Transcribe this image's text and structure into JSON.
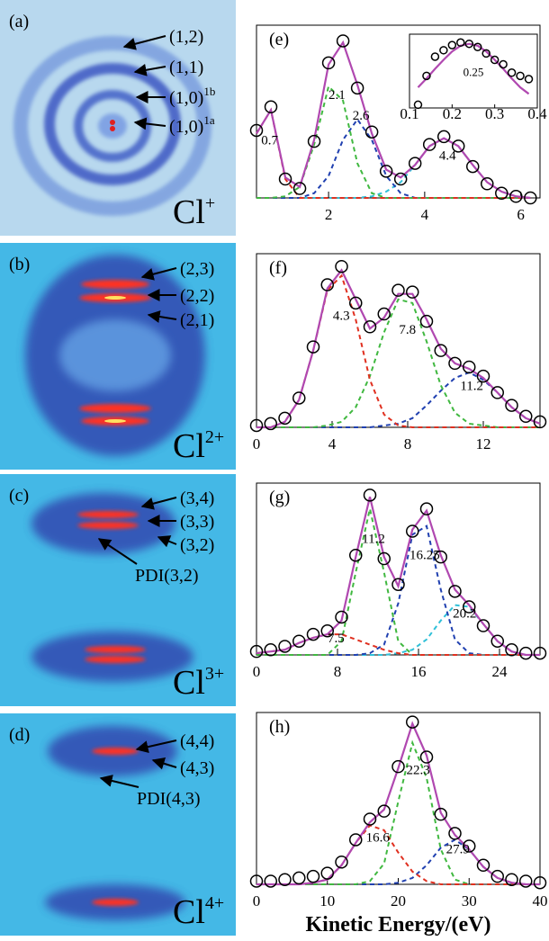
{
  "images": [
    {
      "panel_label": "(a)",
      "ion": "Cl",
      "charge": "+",
      "labels": [
        {
          "text": "(1,2)"
        },
        {
          "text": "(1,1)"
        },
        {
          "text": "(1,0)",
          "superscript": "1b"
        },
        {
          "text": "(1,0)",
          "superscript": "1a"
        }
      ]
    },
    {
      "panel_label": "(b)",
      "ion": "Cl",
      "charge": "2+",
      "labels": [
        {
          "text": "(2,3)"
        },
        {
          "text": "(2,2)"
        },
        {
          "text": "(2,1)"
        }
      ]
    },
    {
      "panel_label": "(c)",
      "ion": "Cl",
      "charge": "3+",
      "labels": [
        {
          "text": "(3,4)"
        },
        {
          "text": "(3,3)"
        },
        {
          "text": "(3,2)"
        },
        {
          "text": "PDI(3,2)"
        }
      ]
    },
    {
      "panel_label": "(d)",
      "ion": "Cl",
      "charge": "4+",
      "labels": [
        {
          "text": "(4,4)"
        },
        {
          "text": "(4,3)"
        },
        {
          "text": "PDI(4,3)"
        }
      ]
    }
  ],
  "chart_data": [
    {
      "type": "line",
      "panel_label": "(e)",
      "xlim": [
        0.5,
        6.4
      ],
      "xticks": [
        2,
        4,
        6
      ],
      "ylim": [
        0,
        1.1
      ],
      "x": [
        0.5,
        0.8,
        1.1,
        1.4,
        1.7,
        2.0,
        2.3,
        2.6,
        2.9,
        3.2,
        3.5,
        3.8,
        4.1,
        4.4,
        4.7,
        5.0,
        5.3,
        5.6,
        5.9,
        6.2
      ],
      "series": [
        {
          "marker": "circle",
          "color": "#000000",
          "values": [
            0.43,
            0.58,
            0.12,
            0.06,
            0.36,
            0.86,
            1.0,
            0.7,
            0.42,
            0.17,
            0.12,
            0.22,
            0.34,
            0.39,
            0.33,
            0.2,
            0.09,
            0.03,
            0.01,
            0.0
          ]
        },
        {
          "line_style": "solid",
          "color": "#b048b0",
          "values": [
            0.41,
            0.56,
            0.13,
            0.07,
            0.37,
            0.85,
            0.99,
            0.72,
            0.41,
            0.18,
            0.13,
            0.21,
            0.33,
            0.38,
            0.33,
            0.21,
            0.1,
            0.04,
            0.01,
            0.0
          ]
        },
        {
          "line_style": "dashed",
          "color": "#e03020",
          "values": [
            0.41,
            0.56,
            0.12,
            0,
            0,
            0,
            0,
            0,
            0,
            0,
            0,
            0,
            0,
            0,
            0,
            0,
            0,
            0,
            0,
            0
          ]
        },
        {
          "line_style": "dashed",
          "color": "#40b840",
          "values": [
            0,
            0,
            0.01,
            0.07,
            0.34,
            0.71,
            0.62,
            0.22,
            0.03,
            0,
            0,
            0,
            0,
            0,
            0,
            0,
            0,
            0,
            0,
            0
          ]
        },
        {
          "line_style": "dashed",
          "color": "#2040b0",
          "values": [
            0,
            0,
            0,
            0,
            0.03,
            0.14,
            0.37,
            0.5,
            0.37,
            0.14,
            0.03,
            0,
            0,
            0,
            0,
            0,
            0,
            0,
            0,
            0
          ]
        },
        {
          "line_style": "dashed",
          "color": "#30c0d8",
          "values": [
            0,
            0,
            0,
            0,
            0,
            0,
            0,
            0,
            0.01,
            0.04,
            0.1,
            0.21,
            0.33,
            0.38,
            0.33,
            0.21,
            0.1,
            0.04,
            0.01,
            0
          ]
        }
      ],
      "annotations": [
        0.7,
        2.1,
        2.6,
        4.4
      ],
      "inset": {
        "type": "line",
        "xlim": [
          0.1,
          0.4
        ],
        "xticks": [
          0.1,
          0.2,
          0.3,
          0.4
        ],
        "ylim": [
          0,
          1.15
        ],
        "x": [
          0.12,
          0.14,
          0.16,
          0.18,
          0.2,
          0.22,
          0.24,
          0.26,
          0.28,
          0.3,
          0.32,
          0.34,
          0.36,
          0.38
        ],
        "series": [
          {
            "marker": "circle",
            "color": "#000000",
            "values": [
              0.05,
              0.5,
              0.8,
              0.9,
              0.98,
              1.02,
              1.0,
              0.95,
              0.85,
              0.75,
              0.68,
              0.55,
              0.5,
              0.45
            ]
          },
          {
            "line_style": "solid",
            "color": "#b048b0",
            "values": [
              0.32,
              0.46,
              0.61,
              0.75,
              0.88,
              0.97,
              1.0,
              0.97,
              0.88,
              0.75,
              0.61,
              0.46,
              0.32,
              0.22
            ]
          }
        ],
        "annotations": [
          0.25
        ]
      }
    },
    {
      "type": "line",
      "panel_label": "(f)",
      "xlim": [
        0,
        15
      ],
      "xticks": [
        0,
        4,
        8,
        12
      ],
      "ylim": [
        0,
        0.95
      ],
      "x": [
        0,
        0.75,
        1.5,
        2.25,
        3,
        3.75,
        4.5,
        5.25,
        6,
        6.75,
        7.5,
        8.25,
        9,
        9.75,
        10.5,
        11.25,
        12,
        12.75,
        13.5,
        14.25,
        15
      ],
      "series": [
        {
          "marker": "circle",
          "color": "#000000",
          "values": [
            0.01,
            0.02,
            0.05,
            0.16,
            0.44,
            0.78,
            0.88,
            0.68,
            0.55,
            0.62,
            0.75,
            0.74,
            0.58,
            0.42,
            0.35,
            0.33,
            0.28,
            0.19,
            0.12,
            0.06,
            0.03
          ]
        },
        {
          "line_style": "solid",
          "color": "#b048b0",
          "values": [
            0,
            0,
            0.03,
            0.15,
            0.42,
            0.76,
            0.86,
            0.7,
            0.54,
            0.6,
            0.73,
            0.73,
            0.59,
            0.43,
            0.35,
            0.32,
            0.27,
            0.19,
            0.11,
            0.05,
            0.02
          ]
        },
        {
          "line_style": "dashed",
          "color": "#e03020",
          "values": [
            0,
            0,
            0.03,
            0.15,
            0.42,
            0.75,
            0.83,
            0.59,
            0.26,
            0.07,
            0.01,
            0,
            0,
            0,
            0,
            0,
            0,
            0,
            0,
            0,
            0
          ]
        },
        {
          "line_style": "dashed",
          "color": "#40b840",
          "values": [
            0,
            0,
            0,
            0,
            0,
            0.01,
            0.03,
            0.11,
            0.28,
            0.52,
            0.7,
            0.68,
            0.47,
            0.23,
            0.08,
            0.02,
            0.01,
            0,
            0,
            0,
            0
          ]
        },
        {
          "line_style": "dashed",
          "color": "#2040b0",
          "values": [
            0,
            0,
            0,
            0,
            0,
            0,
            0,
            0,
            0,
            0.01,
            0.02,
            0.05,
            0.12,
            0.2,
            0.27,
            0.3,
            0.26,
            0.19,
            0.11,
            0.05,
            0.02
          ]
        }
      ],
      "annotations": [
        4.3,
        7.8,
        11.2
      ]
    },
    {
      "type": "line",
      "panel_label": "(g)",
      "xlim": [
        0,
        28
      ],
      "xticks": [
        0,
        8,
        16,
        24
      ],
      "ylim": [
        0,
        1.0
      ],
      "x": [
        0,
        1.4,
        2.8,
        4.2,
        5.6,
        7,
        8.4,
        9.8,
        11.2,
        12.6,
        14,
        15.4,
        16.8,
        18.2,
        19.6,
        21,
        22.4,
        23.8,
        25.2,
        26.6,
        28
      ],
      "series": [
        {
          "marker": "circle",
          "color": "#000000",
          "values": [
            0.02,
            0.03,
            0.05,
            0.08,
            0.12,
            0.14,
            0.22,
            0.58,
            0.93,
            0.56,
            0.41,
            0.72,
            0.85,
            0.57,
            0.37,
            0.28,
            0.17,
            0.08,
            0.03,
            0.01,
            0.01
          ]
        },
        {
          "line_style": "solid",
          "color": "#b048b0",
          "values": [
            0.01,
            0.02,
            0.03,
            0.07,
            0.1,
            0.12,
            0.2,
            0.57,
            0.92,
            0.57,
            0.4,
            0.73,
            0.84,
            0.58,
            0.38,
            0.29,
            0.18,
            0.08,
            0.02,
            0,
            0
          ]
        },
        {
          "line_style": "dashed",
          "color": "#e03020",
          "values": [
            0.01,
            0.02,
            0.03,
            0.07,
            0.1,
            0.12,
            0.12,
            0.09,
            0.06,
            0.03,
            0.01,
            0,
            0,
            0,
            0,
            0,
            0,
            0,
            0,
            0,
            0
          ]
        },
        {
          "line_style": "dashed",
          "color": "#40b840",
          "values": [
            0,
            0,
            0,
            0,
            0,
            0,
            0.08,
            0.48,
            0.85,
            0.48,
            0.08,
            0,
            0,
            0,
            0,
            0,
            0,
            0,
            0,
            0,
            0
          ]
        },
        {
          "line_style": "dashed",
          "color": "#2040b0",
          "values": [
            0,
            0,
            0,
            0,
            0,
            0,
            0,
            0,
            0.01,
            0.06,
            0.3,
            0.7,
            0.75,
            0.38,
            0.09,
            0.01,
            0,
            0,
            0,
            0,
            0
          ]
        },
        {
          "line_style": "dashed",
          "color": "#30c0d8",
          "values": [
            0,
            0,
            0,
            0,
            0,
            0,
            0,
            0,
            0,
            0,
            0.01,
            0.03,
            0.09,
            0.2,
            0.29,
            0.28,
            0.18,
            0.08,
            0.02,
            0,
            0
          ]
        }
      ],
      "annotations": [
        7.5,
        11.2,
        16.25,
        20.2
      ]
    },
    {
      "type": "line",
      "panel_label": "(h)",
      "xlim": [
        0,
        40
      ],
      "xticks": [
        0,
        10,
        20,
        30,
        40
      ],
      "ylim": [
        0,
        1.08
      ],
      "xlabel": "Kinetic Energy/(eV)",
      "x": [
        0,
        2,
        4,
        6,
        8,
        10,
        12,
        14,
        16,
        18,
        20,
        22,
        24,
        26,
        28,
        30,
        32,
        34,
        36,
        38,
        40
      ],
      "series": [
        {
          "marker": "circle",
          "color": "#000000",
          "values": [
            0.02,
            0.02,
            0.03,
            0.04,
            0.05,
            0.07,
            0.14,
            0.28,
            0.41,
            0.46,
            0.74,
            1.02,
            0.8,
            0.44,
            0.32,
            0.24,
            0.12,
            0.05,
            0.03,
            0.02,
            0.01
          ]
        },
        {
          "line_style": "solid",
          "color": "#b048b0",
          "values": [
            0,
            0,
            0,
            0,
            0.01,
            0.03,
            0.12,
            0.26,
            0.39,
            0.47,
            0.73,
            1.01,
            0.81,
            0.45,
            0.31,
            0.22,
            0.11,
            0.04,
            0.01,
            0,
            0
          ]
        },
        {
          "line_style": "dashed",
          "color": "#e03020",
          "values": [
            0,
            0,
            0,
            0,
            0.01,
            0.03,
            0.12,
            0.26,
            0.37,
            0.34,
            0.2,
            0.08,
            0.02,
            0,
            0,
            0,
            0,
            0,
            0,
            0,
            0
          ]
        },
        {
          "line_style": "dashed",
          "color": "#40b840",
          "values": [
            0,
            0,
            0,
            0,
            0,
            0,
            0,
            0,
            0.02,
            0.13,
            0.52,
            0.89,
            0.67,
            0.22,
            0.03,
            0,
            0,
            0,
            0,
            0,
            0
          ]
        },
        {
          "line_style": "dashed",
          "color": "#2040b0",
          "values": [
            0,
            0,
            0,
            0,
            0,
            0,
            0,
            0,
            0,
            0,
            0.01,
            0.04,
            0.12,
            0.23,
            0.28,
            0.22,
            0.11,
            0.04,
            0.01,
            0,
            0
          ]
        }
      ],
      "annotations": [
        16.6,
        22.3,
        27.9
      ]
    }
  ]
}
